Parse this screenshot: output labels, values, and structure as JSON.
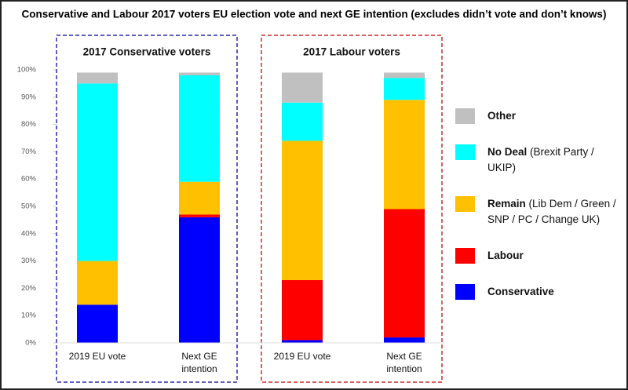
{
  "chart_data": {
    "type": "stacked_bar",
    "title": "Conservative and Labour 2017 voters EU election vote and next GE intention (excludes didn’t vote and don’t knows)",
    "groups": [
      {
        "title": "2017 Conservative voters",
        "color": "#2a2aa8"
      },
      {
        "title": "2017 Labour voters",
        "color": "#d02a2a"
      }
    ],
    "categories": [
      "2019 EU vote",
      "Next GE intention",
      "2019 EU vote",
      "Next GE intention"
    ],
    "series": [
      {
        "name": "Conservative",
        "color": "#0000ff",
        "values": [
          14,
          46,
          1,
          2
        ]
      },
      {
        "name": "Labour",
        "color": "#ff0000",
        "values": [
          0,
          1,
          22,
          47
        ]
      },
      {
        "name": "Remain",
        "note": "(Lib Dem / Green / SNP / PC / Change UK)",
        "color": "#ffc000",
        "values": [
          16,
          12,
          51,
          40
        ]
      },
      {
        "name": "No Deal",
        "note": "(Brexit Party / UKIP)",
        "color": "#00ffff",
        "values": [
          65,
          39,
          14,
          8
        ]
      },
      {
        "name": "Other",
        "color": "#c0c0c0",
        "values": [
          4,
          1,
          11,
          2
        ]
      }
    ],
    "ylim": [
      0,
      100
    ],
    "yticks": [
      {
        "value": 0,
        "label": "0%"
      },
      {
        "value": 10,
        "label": "10%"
      },
      {
        "value": 20,
        "label": "20%"
      },
      {
        "value": 30,
        "label": "30%"
      },
      {
        "value": 40,
        "label": "40%"
      },
      {
        "value": 50,
        "label": "50%"
      },
      {
        "value": 60,
        "label": "60%"
      },
      {
        "value": 70,
        "label": "70%"
      },
      {
        "value": 80,
        "label": "80%"
      },
      {
        "value": 90,
        "label": "90%"
      },
      {
        "value": 100,
        "label": "100%"
      }
    ],
    "grid": false
  }
}
